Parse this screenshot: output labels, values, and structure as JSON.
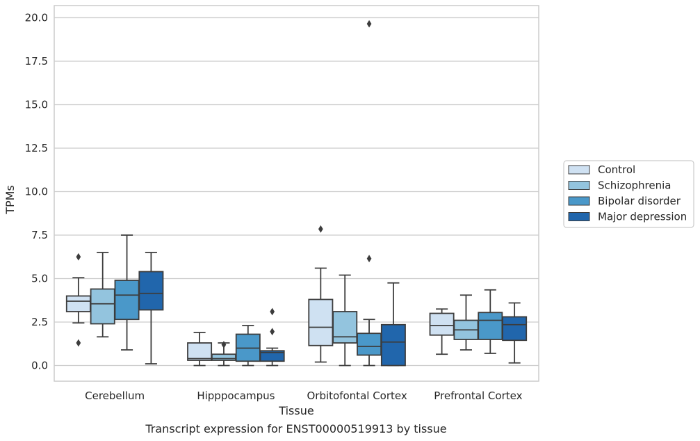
{
  "chart_data": {
    "type": "box",
    "xlabel": "Tissue",
    "ylabel": "TPMs",
    "caption": "Transcript expression for ENST00000519913 by tissue",
    "ylim": [
      -0.9,
      20.7
    ],
    "yticks": [
      "0.0",
      "2.5",
      "5.0",
      "7.5",
      "10.0",
      "12.5",
      "15.0",
      "17.5",
      "20.0"
    ],
    "ytick_values": [
      0,
      2.5,
      5,
      7.5,
      10,
      12.5,
      15,
      17.5,
      20
    ],
    "grid": true,
    "legend_position": "right",
    "categories": [
      "Cerebellum",
      "Hipppocampus",
      "Orbitofontal Cortex",
      "Prefrontal Cortex"
    ],
    "series": [
      {
        "name": "Control",
        "color": "#cfe1f2",
        "boxes": [
          {
            "whisker_low": 2.45,
            "q1": 3.1,
            "median": 3.7,
            "q3": 4.0,
            "whisker_high": 5.05,
            "outliers": [
              6.25,
              1.3
            ]
          },
          {
            "whisker_low": 0.0,
            "q1": 0.3,
            "median": 0.4,
            "q3": 1.3,
            "whisker_high": 1.9,
            "outliers": []
          },
          {
            "whisker_low": 0.2,
            "q1": 1.15,
            "median": 2.2,
            "q3": 3.8,
            "whisker_high": 5.6,
            "outliers": [
              7.85
            ]
          },
          {
            "whisker_low": 0.65,
            "q1": 1.75,
            "median": 2.3,
            "q3": 3.0,
            "whisker_high": 3.25,
            "outliers": []
          }
        ]
      },
      {
        "name": "Schizophrenia",
        "color": "#93c4de",
        "boxes": [
          {
            "whisker_low": 1.65,
            "q1": 2.4,
            "median": 3.55,
            "q3": 4.4,
            "whisker_high": 6.5,
            "outliers": []
          },
          {
            "whisker_low": 0.0,
            "q1": 0.3,
            "median": 0.4,
            "q3": 0.65,
            "whisker_high": 1.3,
            "outliers": [
              1.2
            ]
          },
          {
            "whisker_low": 0.0,
            "q1": 1.3,
            "median": 1.65,
            "q3": 3.1,
            "whisker_high": 5.2,
            "outliers": []
          },
          {
            "whisker_low": 0.9,
            "q1": 1.5,
            "median": 2.05,
            "q3": 2.6,
            "whisker_high": 4.05,
            "outliers": []
          }
        ]
      },
      {
        "name": "Bipolar disorder",
        "color": "#4a98c9",
        "boxes": [
          {
            "whisker_low": 0.9,
            "q1": 2.65,
            "median": 4.05,
            "q3": 4.9,
            "whisker_high": 7.5,
            "outliers": []
          },
          {
            "whisker_low": 0.0,
            "q1": 0.25,
            "median": 1.0,
            "q3": 1.8,
            "whisker_high": 2.3,
            "outliers": []
          },
          {
            "whisker_low": 0.0,
            "q1": 0.6,
            "median": 1.1,
            "q3": 1.85,
            "whisker_high": 2.65,
            "outliers": [
              6.15,
              19.65
            ]
          },
          {
            "whisker_low": 0.7,
            "q1": 1.5,
            "median": 2.6,
            "q3": 3.05,
            "whisker_high": 4.35,
            "outliers": []
          }
        ]
      },
      {
        "name": "Major depression",
        "color": "#2166ac",
        "boxes": [
          {
            "whisker_low": 0.1,
            "q1": 3.2,
            "median": 4.15,
            "q3": 5.4,
            "whisker_high": 6.5,
            "outliers": []
          },
          {
            "whisker_low": 0.0,
            "q1": 0.25,
            "median": 0.75,
            "q3": 0.85,
            "whisker_high": 1.0,
            "outliers": [
              3.1,
              1.95
            ]
          },
          {
            "whisker_low": 0.0,
            "q1": 0.0,
            "median": 1.35,
            "q3": 2.35,
            "whisker_high": 4.75,
            "outliers": []
          },
          {
            "whisker_low": 0.15,
            "q1": 1.45,
            "median": 2.35,
            "q3": 2.8,
            "whisker_high": 3.6,
            "outliers": []
          }
        ]
      }
    ]
  }
}
